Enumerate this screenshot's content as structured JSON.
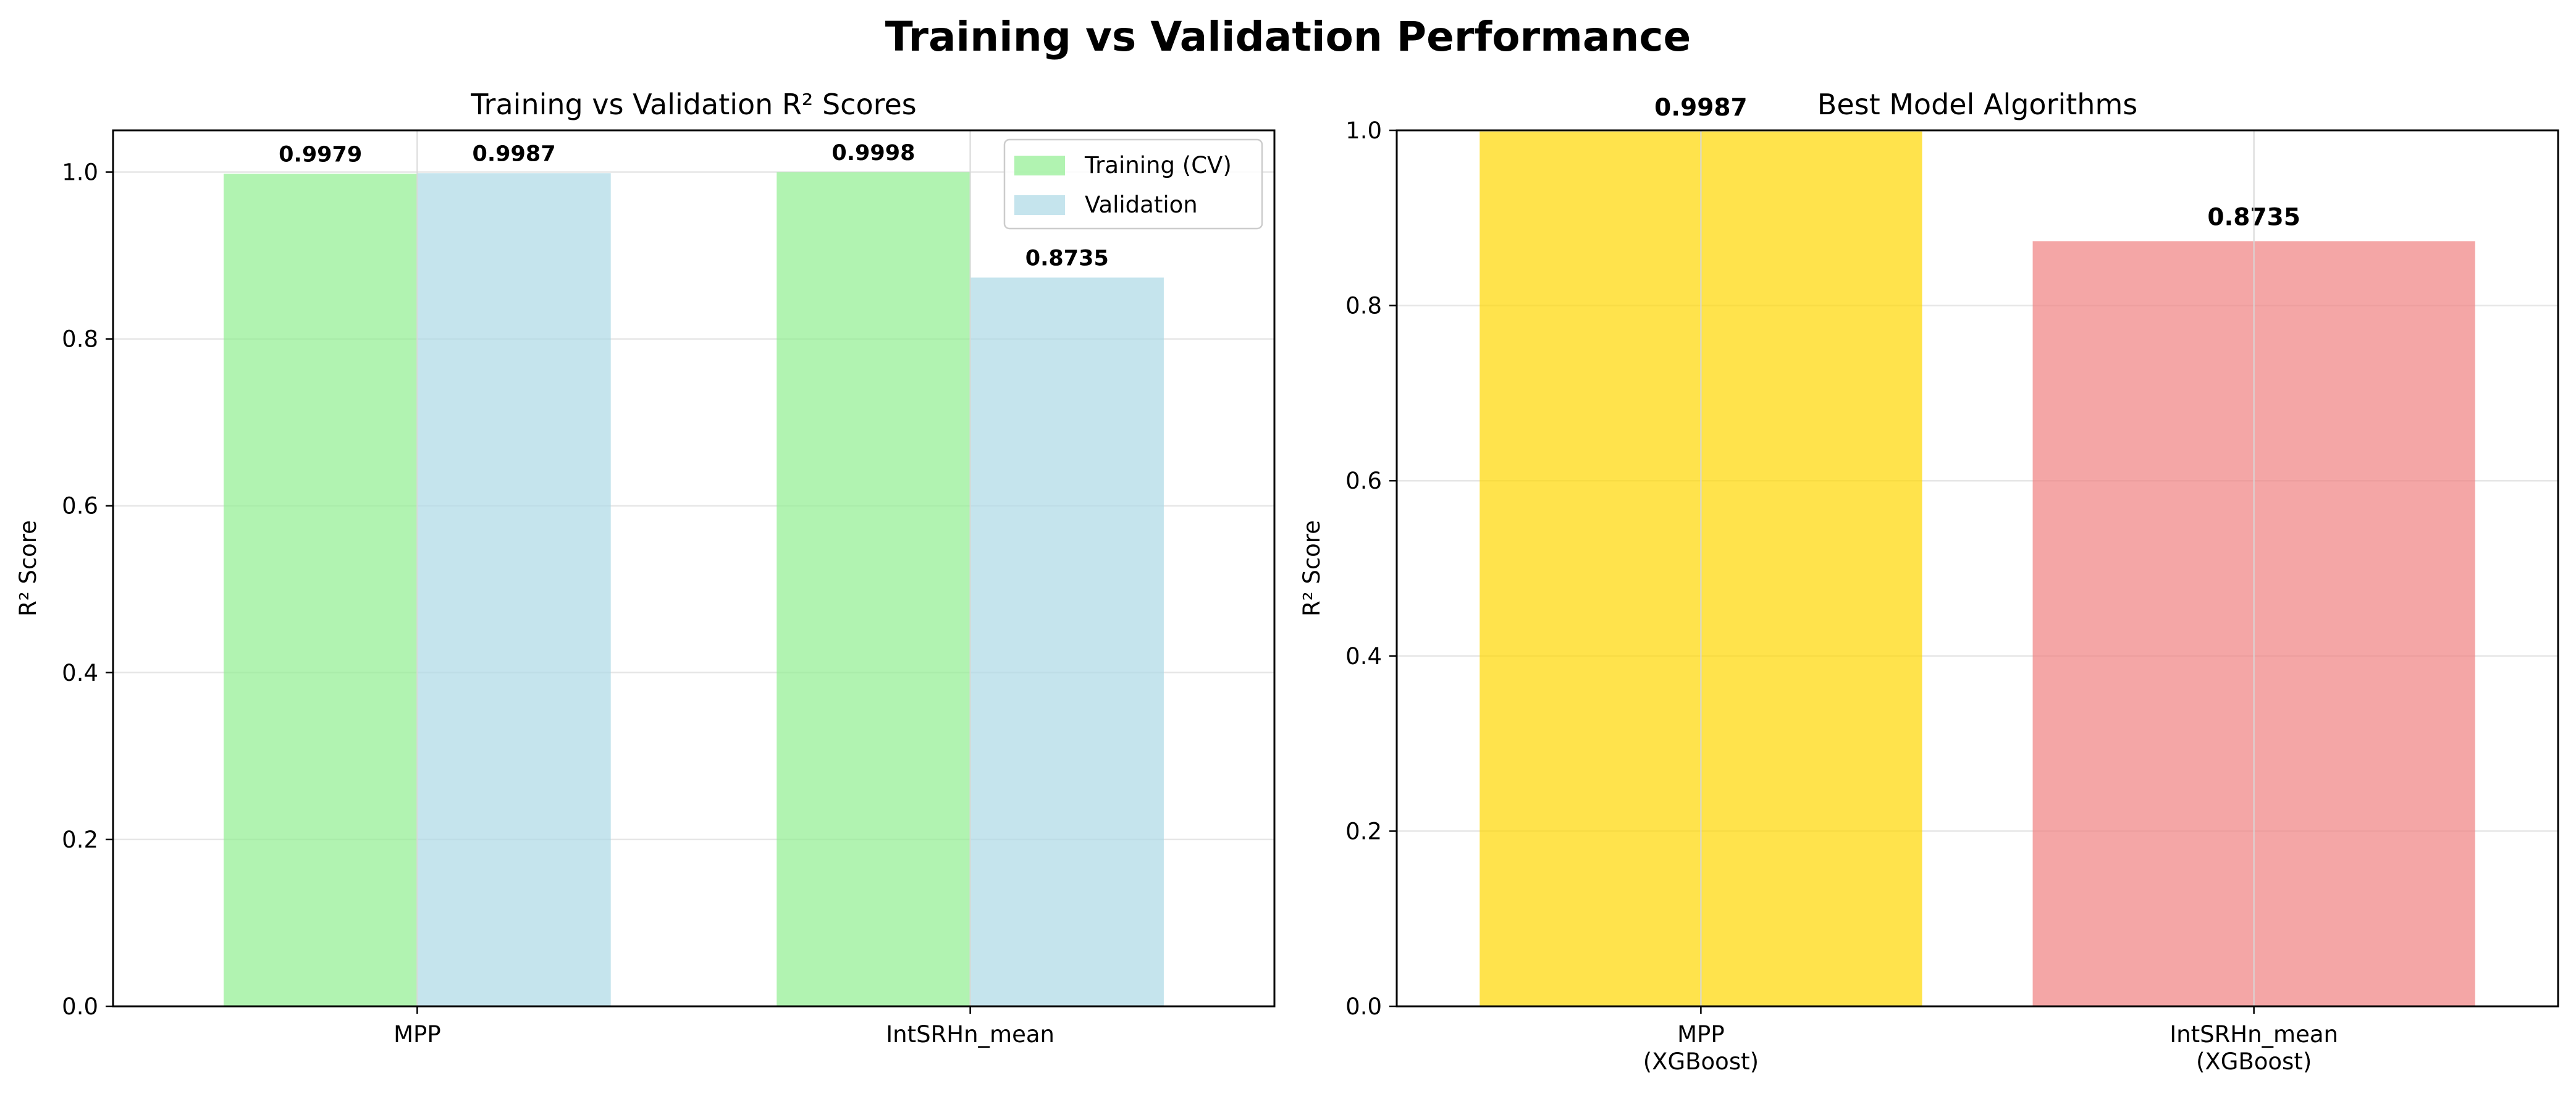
{
  "figure": {
    "suptitle": "Training vs Validation Performance"
  },
  "chart_data": [
    {
      "type": "bar",
      "title": "Training vs Validation R² Scores",
      "xlabel": "",
      "ylabel": "R² Score",
      "ylim": [
        0,
        1.05
      ],
      "yticks": [
        "0.0",
        "0.2",
        "0.4",
        "0.6",
        "0.8",
        "1.0"
      ],
      "grid": true,
      "legend_position": "top-right",
      "categories": [
        "MPP",
        "IntSRHn_mean"
      ],
      "series": [
        {
          "name": "Training (CV)",
          "color": "#90ee90",
          "values": [
            0.9979,
            0.9998
          ],
          "labels": [
            "0.9979",
            "0.9998"
          ]
        },
        {
          "name": "Validation",
          "color": "#add8e6",
          "values": [
            0.9987,
            0.8735
          ],
          "labels": [
            "0.9987",
            "0.8735"
          ]
        }
      ]
    },
    {
      "type": "bar",
      "title": "Best Model Algorithms",
      "xlabel": "",
      "ylabel": "R² Score",
      "ylim": [
        0,
        1.0
      ],
      "yticks": [
        "0.0",
        "0.2",
        "0.4",
        "0.6",
        "0.8",
        "1.0"
      ],
      "grid": true,
      "categories": [
        [
          "MPP",
          "(XGBoost)"
        ],
        [
          "IntSRHn_mean",
          "(XGBoost)"
        ]
      ],
      "values": [
        0.9987,
        0.8735
      ],
      "labels": [
        "0.9987",
        "0.8735"
      ],
      "colors": [
        "#ffd700",
        "#f08080"
      ]
    }
  ]
}
